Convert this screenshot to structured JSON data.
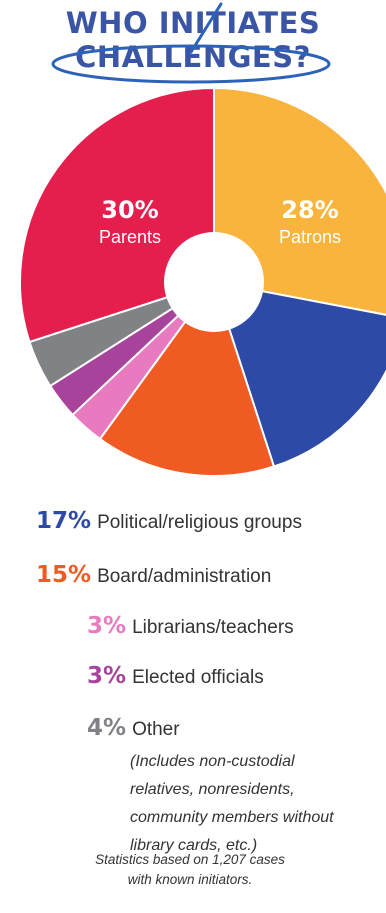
{
  "title_line1": "WHO INITIATES",
  "title_line2": "CHALLENGES?",
  "colors": {
    "title": "#3b55a6",
    "annotation": "#2c63b8",
    "parents": "#e41f4d",
    "patrons": "#f8b43c",
    "political": "#2d4aa6",
    "board": "#f05a23",
    "librarians": "#e87bbf",
    "elected": "#a8439c",
    "other": "#808285"
  },
  "chart_data": {
    "type": "pie",
    "title": "WHO INITIATES CHALLENGES?",
    "slices": [
      {
        "pct": "28%",
        "label": "Patrons",
        "value": 28,
        "color": "#f8b43c"
      },
      {
        "pct": "17%",
        "label": "Political/religious groups",
        "value": 17,
        "color": "#2d4aa6"
      },
      {
        "pct": "15%",
        "label": "Board/administration",
        "value": 15,
        "color": "#f05a23"
      },
      {
        "pct": "3%",
        "label": "Librarians/teachers",
        "value": 3,
        "color": "#e87bbf"
      },
      {
        "pct": "3%",
        "label": "Elected officials",
        "value": 3,
        "color": "#a8439c"
      },
      {
        "pct": "4%",
        "label": "Other",
        "value": 4,
        "color": "#808285"
      },
      {
        "pct": "30%",
        "label": "Parents",
        "value": 30,
        "color": "#e41f4d"
      }
    ],
    "in_slice_labels": [
      0,
      6
    ],
    "legend_labels": [
      1,
      2,
      3,
      4,
      5
    ]
  },
  "other_note": [
    "(Includes non-custodial",
    "relatives, nonresidents,",
    "community members without",
    "library cards, etc.)"
  ],
  "footnote": [
    "Statistics based on 1,207 cases",
    "with known initiators."
  ]
}
